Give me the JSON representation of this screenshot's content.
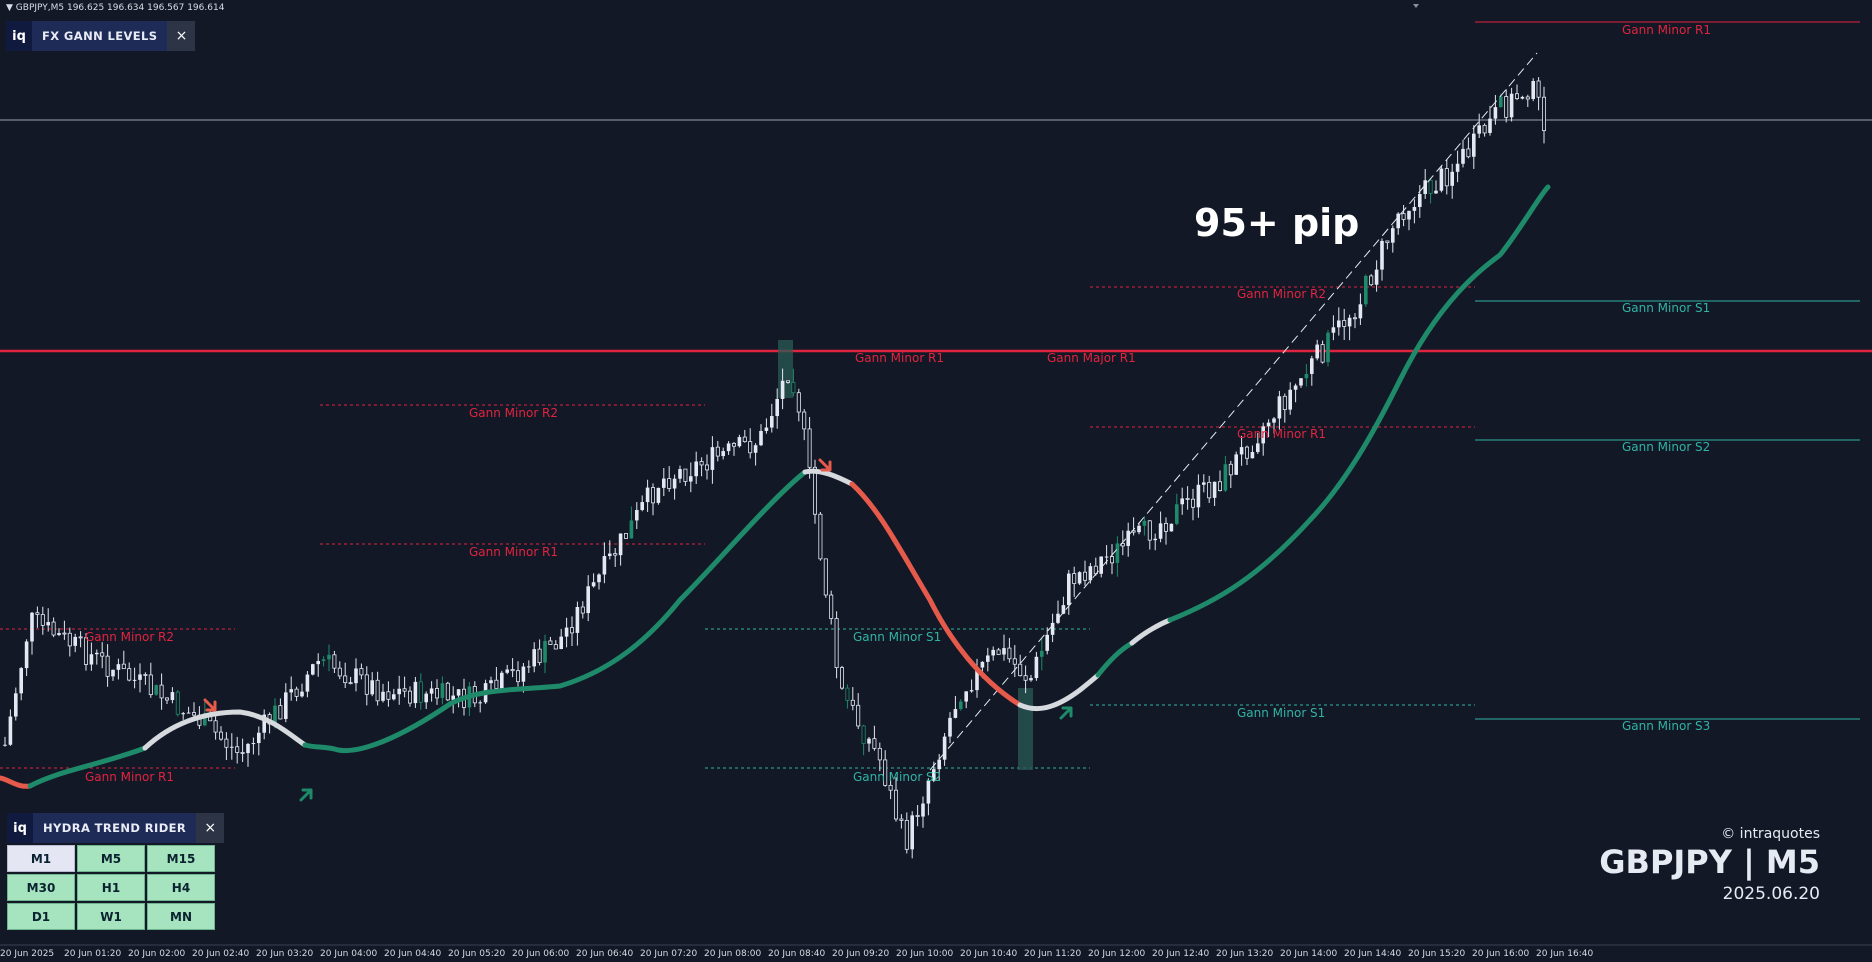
{
  "header": {
    "symbol_line": "GBPJPY,M5  196.625 196.634 196.567 196.614"
  },
  "gann_panel": {
    "logo": "iq",
    "title": "FX GANN LEVELS",
    "close": "×"
  },
  "trend_panel": {
    "logo": "iq",
    "title": "HYDRA TREND RIDER",
    "close": "×"
  },
  "timeframes": [
    {
      "label": "M1",
      "active": true
    },
    {
      "label": "M5",
      "active": false
    },
    {
      "label": "M15",
      "active": false
    },
    {
      "label": "M30",
      "active": false
    },
    {
      "label": "H1",
      "active": false
    },
    {
      "label": "H4",
      "active": false
    },
    {
      "label": "D1",
      "active": false
    },
    {
      "label": "W1",
      "active": false
    },
    {
      "label": "MN",
      "active": false
    }
  ],
  "annotation": "95+ pip",
  "brand": {
    "copyright": "© intraquotes",
    "pair": "GBPJPY | M5",
    "date": "2025.06.20"
  },
  "colors": {
    "background": "#121826",
    "up_candle": "#e4e8f2",
    "resistance": "#e0243f",
    "support": "#30b3a3",
    "trend_up": "#1f8a6a",
    "trend_down": "#e55a4a",
    "trend_neutral": "#d6d9de"
  },
  "time_axis": [
    "20 Jun 2025",
    "20 Jun 01:20",
    "20 Jun 02:00",
    "20 Jun 02:40",
    "20 Jun 03:20",
    "20 Jun 04:00",
    "20 Jun 04:40",
    "20 Jun 05:20",
    "20 Jun 06:00",
    "20 Jun 06:40",
    "20 Jun 07:20",
    "20 Jun 08:00",
    "20 Jun 08:40",
    "20 Jun 09:20",
    "20 Jun 10:00",
    "20 Jun 10:40",
    "20 Jun 11:20",
    "20 Jun 12:00",
    "20 Jun 12:40",
    "20 Jun 13:20",
    "20 Jun 14:00",
    "20 Jun 14:40",
    "20 Jun 15:20",
    "20 Jun 16:00",
    "20 Jun 16:40"
  ],
  "gann_levels": [
    {
      "label": "Gann Minor R2",
      "type": "resistance"
    },
    {
      "label": "Gann Minor R1",
      "type": "resistance"
    },
    {
      "label": "Gann Minor R2",
      "type": "resistance"
    },
    {
      "label": "Gann Minor R1",
      "type": "resistance"
    },
    {
      "label": "Gann Minor R1",
      "type": "resistance"
    },
    {
      "label": "Gann Major R1",
      "type": "resistance"
    },
    {
      "label": "Gann Minor S1",
      "type": "support"
    },
    {
      "label": "Gann Minor S2",
      "type": "support"
    },
    {
      "label": "Gann Minor R2",
      "type": "resistance"
    },
    {
      "label": "Gann Minor R1",
      "type": "resistance"
    },
    {
      "label": "Gann Minor S1",
      "type": "support"
    },
    {
      "label": "Gann Minor R1",
      "type": "resistance"
    },
    {
      "label": "Gann Minor S1",
      "type": "support"
    },
    {
      "label": "Gann Minor S2",
      "type": "support"
    },
    {
      "label": "Gann Minor S3",
      "type": "support"
    }
  ]
}
